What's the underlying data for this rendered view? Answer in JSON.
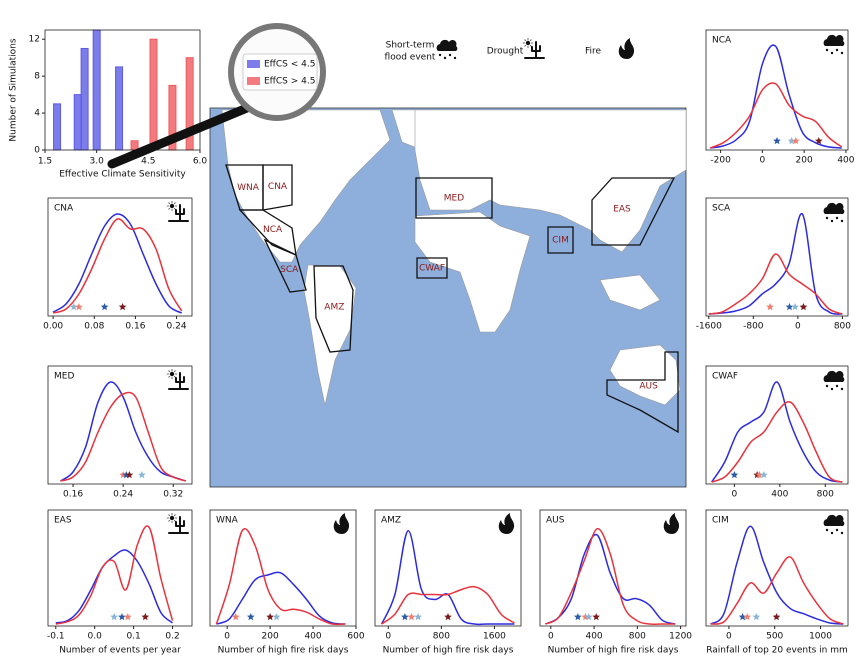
{
  "chart_data": [
    {
      "type": "bar",
      "ylabel": "Number of Simulations",
      "xlabel": "Effective Climate Sensitivity",
      "series": [
        {
          "name": "EffCS < 4.5",
          "color": "#5b5be6",
          "x": [
            1.85,
            2.45,
            2.65,
            3.0,
            3.65
          ],
          "values": [
            5,
            6,
            11,
            13,
            9
          ]
        },
        {
          "name": "EffCS > 4.5",
          "color": "#ee5a5f",
          "x": [
            4.1,
            4.65,
            5.2,
            5.7
          ],
          "values": [
            1,
            12,
            7,
            10
          ]
        }
      ],
      "xlim": [
        1.5,
        6.0
      ],
      "xticks": [
        1.5,
        {
          "value": 3.0,
          "label": "3.0"
        },
        4.5,
        {
          "value": 6.0,
          "label": "6.0"
        }
      ],
      "ylim": [
        0,
        13
      ],
      "yticks": [
        0,
        4,
        8,
        12
      ]
    },
    {
      "type": "density",
      "title": "CNA",
      "icon": "drought",
      "x": [
        0,
        0.025,
        0.05,
        0.075,
        0.1,
        0.125,
        0.15,
        0.175,
        0.2,
        0.225,
        0.25
      ],
      "series": [
        {
          "color": "#2b2be0",
          "values": [
            0.02,
            0.1,
            0.3,
            0.6,
            0.88,
            1.0,
            0.9,
            0.6,
            0.3,
            0.08,
            0.01
          ]
        },
        {
          "color": "#e8323c",
          "values": [
            0.01,
            0.05,
            0.2,
            0.45,
            0.75,
            0.95,
            0.85,
            0.85,
            0.65,
            0.25,
            0.03
          ]
        }
      ],
      "markers": [
        {
          "color": "#8ab6d6",
          "x": 0.04
        },
        {
          "color": "#f08070",
          "x": 0.05
        },
        {
          "color": "#2a5caa",
          "x": 0.1
        },
        {
          "color": "#7b1a1a",
          "x": 0.135
        }
      ],
      "xlim": [
        -0.01,
        0.27
      ],
      "xticks": [
        {
          "value": 0,
          "label": "0.00"
        },
        0.08,
        0.16,
        0.24
      ],
      "ylim": [
        0,
        1.1
      ]
    },
    {
      "type": "density",
      "title": "MED",
      "icon": "drought",
      "x": [
        0.14,
        0.16,
        0.18,
        0.2,
        0.22,
        0.24,
        0.26,
        0.28,
        0.3,
        0.32,
        0.34
      ],
      "series": [
        {
          "color": "#2b2be0",
          "values": [
            0.01,
            0.1,
            0.35,
            0.8,
            1.0,
            0.85,
            0.5,
            0.25,
            0.1,
            0.05,
            0.01
          ]
        },
        {
          "color": "#e8323c",
          "values": [
            0.01,
            0.05,
            0.2,
            0.5,
            0.75,
            0.88,
            0.85,
            0.5,
            0.15,
            0.05,
            0.01
          ]
        }
      ],
      "markers": [
        {
          "color": "#f08070",
          "x": 0.24
        },
        {
          "color": "#2a5caa",
          "x": 0.245
        },
        {
          "color": "#7b1a1a",
          "x": 0.25
        },
        {
          "color": "#8ab6d6",
          "x": 0.27
        }
      ],
      "xlim": [
        0.12,
        0.35
      ],
      "xticks": [
        0.16,
        0.24,
        0.32
      ],
      "ylim": [
        0,
        1.1
      ]
    },
    {
      "type": "density",
      "title": "EAS",
      "icon": "drought",
      "xlabel": "Number of events per year",
      "x": [
        -0.1,
        -0.07,
        -0.04,
        -0.01,
        0.02,
        0.05,
        0.08,
        0.11,
        0.14,
        0.17,
        0.2
      ],
      "series": [
        {
          "color": "#2b2be0",
          "values": [
            0.01,
            0.03,
            0.12,
            0.3,
            0.5,
            0.6,
            0.65,
            0.55,
            0.35,
            0.1,
            0.01
          ]
        },
        {
          "color": "#e8323c",
          "values": [
            0,
            0.02,
            0.08,
            0.25,
            0.5,
            0.55,
            0.3,
            0.7,
            0.85,
            0.4,
            0.03
          ]
        }
      ],
      "markers": [
        {
          "color": "#8ab6d6",
          "x": 0.05
        },
        {
          "color": "#2a5caa",
          "x": 0.07
        },
        {
          "color": "#f08070",
          "x": 0.085
        },
        {
          "color": "#7b1a1a",
          "x": 0.13
        }
      ],
      "xlim": [
        -0.12,
        0.25
      ],
      "xticks": [
        -0.1,
        {
          "value": 0,
          "label": "0.0"
        },
        0.1,
        0.2
      ],
      "ylim": [
        0,
        0.95
      ]
    },
    {
      "type": "density",
      "title": "WNA",
      "icon": "fire",
      "xlabel": "Number of high fire risk days",
      "x": [
        -50,
        10,
        70,
        130,
        190,
        250,
        310,
        370,
        430,
        490,
        550
      ],
      "series": [
        {
          "color": "#2b2be0",
          "values": [
            0,
            0.05,
            0.25,
            0.45,
            0.5,
            0.52,
            0.4,
            0.25,
            0.08,
            0.01,
            0
          ]
        },
        {
          "color": "#e8323c",
          "values": [
            0,
            0.4,
            0.95,
            0.8,
            0.35,
            0.15,
            0.15,
            0.12,
            0.05,
            0,
            0
          ]
        }
      ],
      "markers": [
        {
          "color": "#f08070",
          "x": 40
        },
        {
          "color": "#2a5caa",
          "x": 110
        },
        {
          "color": "#7b1a1a",
          "x": 200
        },
        {
          "color": "#8ab6d6",
          "x": 230
        }
      ],
      "xlim": [
        -80,
        600
      ],
      "xticks": [
        0,
        200,
        400,
        600
      ],
      "ylim": [
        0,
        1.1
      ]
    },
    {
      "type": "density",
      "title": "AMZ",
      "icon": "fire",
      "xlabel": "Number of high fire risk days",
      "x": [
        -100,
        100,
        300,
        500,
        700,
        900,
        1100,
        1300,
        1500,
        1700,
        1900
      ],
      "series": [
        {
          "color": "#2b2be0",
          "values": [
            0,
            0.3,
            0.95,
            0.35,
            0.25,
            0.3,
            0.05,
            0,
            0,
            0,
            0
          ]
        },
        {
          "color": "#e8323c",
          "values": [
            0,
            0.1,
            0.3,
            0.3,
            0.3,
            0.3,
            0.35,
            0.38,
            0.3,
            0.1,
            0.01
          ]
        }
      ],
      "markers": [
        {
          "color": "#2a5caa",
          "x": 250
        },
        {
          "color": "#f08070",
          "x": 350
        },
        {
          "color": "#8ab6d6",
          "x": 450
        },
        {
          "color": "#7b1a1a",
          "x": 900
        }
      ],
      "xlim": [
        -200,
        2000
      ],
      "xticks": [
        0,
        800,
        1600
      ],
      "ylim": [
        0,
        1.1
      ]
    },
    {
      "type": "density",
      "title": "AUS",
      "icon": "fire",
      "xlabel": "Number of high fire risk days",
      "x": [
        -50,
        70,
        190,
        310,
        430,
        550,
        670,
        790,
        910,
        1030,
        1150
      ],
      "series": [
        {
          "color": "#2b2be0",
          "values": [
            0,
            0.05,
            0.2,
            0.55,
            0.7,
            0.4,
            0.2,
            0.2,
            0.15,
            0.03,
            0
          ]
        },
        {
          "color": "#e8323c",
          "values": [
            0,
            0.05,
            0.25,
            0.5,
            0.75,
            0.55,
            0.15,
            0.03,
            0,
            0,
            0
          ]
        }
      ],
      "markers": [
        {
          "color": "#2a5caa",
          "x": 250
        },
        {
          "color": "#f08070",
          "x": 320
        },
        {
          "color": "#8ab6d6",
          "x": 350
        },
        {
          "color": "#7b1a1a",
          "x": 420
        }
      ],
      "xlim": [
        -100,
        1250
      ],
      "xticks": [
        0,
        400,
        800,
        1200
      ],
      "ylim": [
        0,
        0.85
      ]
    },
    {
      "type": "density",
      "title": "NCA",
      "icon": "flood",
      "x": [
        -250,
        -187,
        -124,
        -61,
        2,
        65,
        128,
        191,
        254,
        317,
        380
      ],
      "series": [
        {
          "color": "#2b2be0",
          "values": [
            0,
            0.02,
            0.08,
            0.25,
            0.8,
            0.95,
            0.5,
            0.15,
            0.05,
            0.01,
            0
          ]
        },
        {
          "color": "#e8323c",
          "values": [
            0,
            0.05,
            0.15,
            0.3,
            0.55,
            0.6,
            0.4,
            0.3,
            0.25,
            0.1,
            0.01
          ]
        }
      ],
      "markers": [
        {
          "color": "#2a5caa",
          "x": 70
        },
        {
          "color": "#8ab6d6",
          "x": 140
        },
        {
          "color": "#f08070",
          "x": 160
        },
        {
          "color": "#7b1a1a",
          "x": 270
        }
      ],
      "xlim": [
        -270,
        410
      ],
      "xticks": [
        -200,
        0,
        200,
        400
      ],
      "ylim": [
        0,
        1.05
      ]
    },
    {
      "type": "density",
      "title": "SCA",
      "icon": "flood",
      "x": [
        -1600,
        -1360,
        -1120,
        -880,
        -640,
        -400,
        -160,
        80,
        320,
        560,
        800
      ],
      "series": [
        {
          "color": "#2b2be0",
          "values": [
            0,
            0.01,
            0.03,
            0.08,
            0.2,
            0.3,
            0.5,
            1.0,
            0.2,
            0.02,
            0
          ]
        },
        {
          "color": "#e8323c",
          "values": [
            0,
            0.02,
            0.1,
            0.2,
            0.35,
            0.6,
            0.4,
            0.3,
            0.2,
            0.05,
            0
          ]
        }
      ],
      "markers": [
        {
          "color": "#f08070",
          "x": -500
        },
        {
          "color": "#2a5caa",
          "x": -150
        },
        {
          "color": "#8ab6d6",
          "x": -50
        },
        {
          "color": "#7b1a1a",
          "x": 100
        }
      ],
      "xlim": [
        -1650,
        900
      ],
      "xticks": [
        -1600,
        -800,
        0,
        800
      ],
      "ylim": [
        0,
        1.1
      ]
    },
    {
      "type": "density",
      "title": "CWAF",
      "icon": "flood",
      "x": [
        -200,
        -85,
        30,
        145,
        260,
        375,
        490,
        605,
        720,
        835,
        950
      ],
      "series": [
        {
          "color": "#2b2be0",
          "values": [
            0,
            0.2,
            0.5,
            0.6,
            0.7,
            1.0,
            0.6,
            0.3,
            0.1,
            0.02,
            0
          ]
        },
        {
          "color": "#e8323c",
          "values": [
            0,
            0.05,
            0.2,
            0.4,
            0.5,
            0.7,
            0.8,
            0.6,
            0.3,
            0.05,
            0
          ]
        }
      ],
      "markers": [
        {
          "color": "#2a5caa",
          "x": 0
        },
        {
          "color": "#7b1a1a",
          "x": 200
        },
        {
          "color": "#f08070",
          "x": 220
        },
        {
          "color": "#8ab6d6",
          "x": 260
        }
      ],
      "xlim": [
        -250,
        1000
      ],
      "xticks": [
        0,
        400,
        800
      ],
      "ylim": [
        0,
        1.1
      ]
    },
    {
      "type": "density",
      "title": "CIM",
      "icon": "flood",
      "xlabel": "Rainfall of top 20 events in mm",
      "x": [
        -200,
        -55,
        90,
        235,
        380,
        525,
        670,
        815,
        960,
        1105,
        1250
      ],
      "series": [
        {
          "color": "#2b2be0",
          "values": [
            0,
            0.1,
            0.6,
            0.95,
            0.6,
            0.3,
            0.15,
            0.1,
            0.05,
            0.01,
            0
          ]
        },
        {
          "color": "#e8323c",
          "values": [
            0,
            0.02,
            0.2,
            0.4,
            0.3,
            0.5,
            0.65,
            0.4,
            0.2,
            0.05,
            0
          ]
        }
      ],
      "markers": [
        {
          "color": "#2a5caa",
          "x": 150
        },
        {
          "color": "#f08070",
          "x": 200
        },
        {
          "color": "#8ab6d6",
          "x": 300
        },
        {
          "color": "#7b1a1a",
          "x": 520
        }
      ],
      "xlim": [
        -250,
        1300
      ],
      "xticks": [
        0,
        500,
        1000
      ],
      "ylim": [
        0,
        1.05
      ]
    }
  ],
  "map": {
    "regions": [
      "WNA",
      "CNA",
      "NCA",
      "SCA",
      "AMZ",
      "MED",
      "CWAF",
      "CIM",
      "EAS",
      "AUS"
    ]
  },
  "icon_legend": [
    {
      "icon": "flood",
      "label": [
        "Short-term",
        "flood event"
      ]
    },
    {
      "icon": "drought",
      "label": [
        "Drought"
      ]
    },
    {
      "icon": "fire",
      "label": [
        "Fire"
      ]
    }
  ]
}
